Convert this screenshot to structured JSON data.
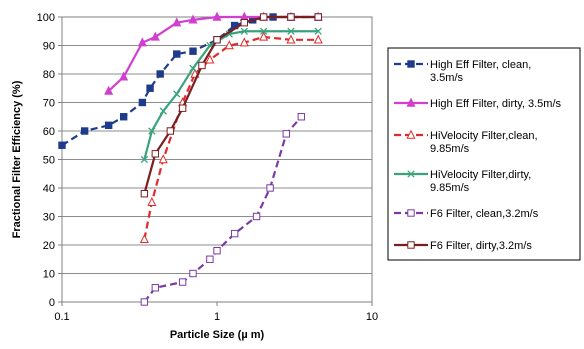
{
  "chart_data": {
    "type": "line",
    "xlabel": "Particle Size (µ m)",
    "ylabel": "Fractional Filter Efficiency (%)",
    "xscale": "log",
    "xlim": [
      0.1,
      10
    ],
    "ylim": [
      0,
      100
    ],
    "xticks": [
      "0.1",
      "1",
      "10"
    ],
    "yticks": [
      "0",
      "10",
      "20",
      "30",
      "40",
      "50",
      "60",
      "70",
      "80",
      "90",
      "100"
    ],
    "grid": "horizontal",
    "legend_position": "right",
    "series": [
      {
        "name": "High Eff Filter, clean, 3.5m/s",
        "legend_lines": [
          "High Eff Filter, clean,",
          "3.5m/s"
        ],
        "color": "#1f3b8c",
        "dash": "dashed",
        "marker": "square-filled",
        "x": [
          0.1,
          0.14,
          0.2,
          0.25,
          0.33,
          0.37,
          0.43,
          0.55,
          0.7,
          1.0,
          1.3,
          1.7,
          2.3,
          3.0,
          4.5
        ],
        "y": [
          55,
          60,
          62,
          65,
          70,
          75,
          80,
          87,
          88,
          92,
          97,
          99,
          100,
          100,
          100
        ]
      },
      {
        "name": "High Eff Filter, dirty, 3.5m/s",
        "legend_lines": [
          "High Eff Filter, dirty, 3.5m/s"
        ],
        "color": "#d13fcf",
        "dash": "solid",
        "marker": "triangle-filled",
        "x": [
          0.2,
          0.25,
          0.33,
          0.4,
          0.55,
          0.7,
          1.0,
          1.5,
          2.0,
          3.0,
          4.5
        ],
        "y": [
          74,
          79,
          91,
          93,
          98,
          99,
          100,
          100,
          100,
          100,
          100
        ]
      },
      {
        "name": "HiVelocity Filter,clean, 9.85m/s",
        "legend_lines": [
          "HiVelocity Filter,clean,",
          "9.85m/s"
        ],
        "color": "#e02a2a",
        "dash": "dashed",
        "marker": "triangle-open",
        "x": [
          0.34,
          0.38,
          0.45,
          0.6,
          0.72,
          0.9,
          1.2,
          1.5,
          2.0,
          3.0,
          4.5
        ],
        "y": [
          22,
          35,
          50,
          70,
          80,
          85,
          90,
          91,
          93,
          92,
          92
        ]
      },
      {
        "name": "HiVelocity Filter,dirty, 9.85m/s",
        "legend_lines": [
          "HiVelocity Filter,dirty,",
          "9.85m/s"
        ],
        "color": "#3aa37c",
        "dash": "solid",
        "marker": "x",
        "x": [
          0.34,
          0.38,
          0.45,
          0.55,
          0.7,
          0.9,
          1.2,
          1.5,
          2.0,
          3.0,
          4.5
        ],
        "y": [
          50,
          60,
          67,
          73,
          82,
          90,
          94,
          95,
          95,
          95,
          95
        ]
      },
      {
        "name": "F6 Filter, clean,3.2m/s",
        "legend_lines": [
          "F6 Filter, clean,3.2m/s"
        ],
        "color": "#7a3aa6",
        "dash": "dashed",
        "marker": "square-open",
        "x": [
          0.34,
          0.4,
          0.6,
          0.7,
          0.9,
          1.0,
          1.3,
          1.8,
          2.2,
          2.8,
          3.5
        ],
        "y": [
          0,
          5,
          7,
          10,
          15,
          18,
          24,
          30,
          40,
          59,
          65
        ]
      },
      {
        "name": "F6 Filter, dirty,3.2m/s",
        "legend_lines": [
          "F6 Filter, dirty,3.2m/s"
        ],
        "color": "#7a1f1f",
        "dash": "solid",
        "marker": "square-open",
        "x": [
          0.34,
          0.4,
          0.5,
          0.6,
          0.8,
          1.0,
          1.5,
          2.0,
          3.0,
          4.5
        ],
        "y": [
          38,
          52,
          60,
          68,
          83,
          92,
          98,
          100,
          100,
          100
        ]
      }
    ]
  }
}
